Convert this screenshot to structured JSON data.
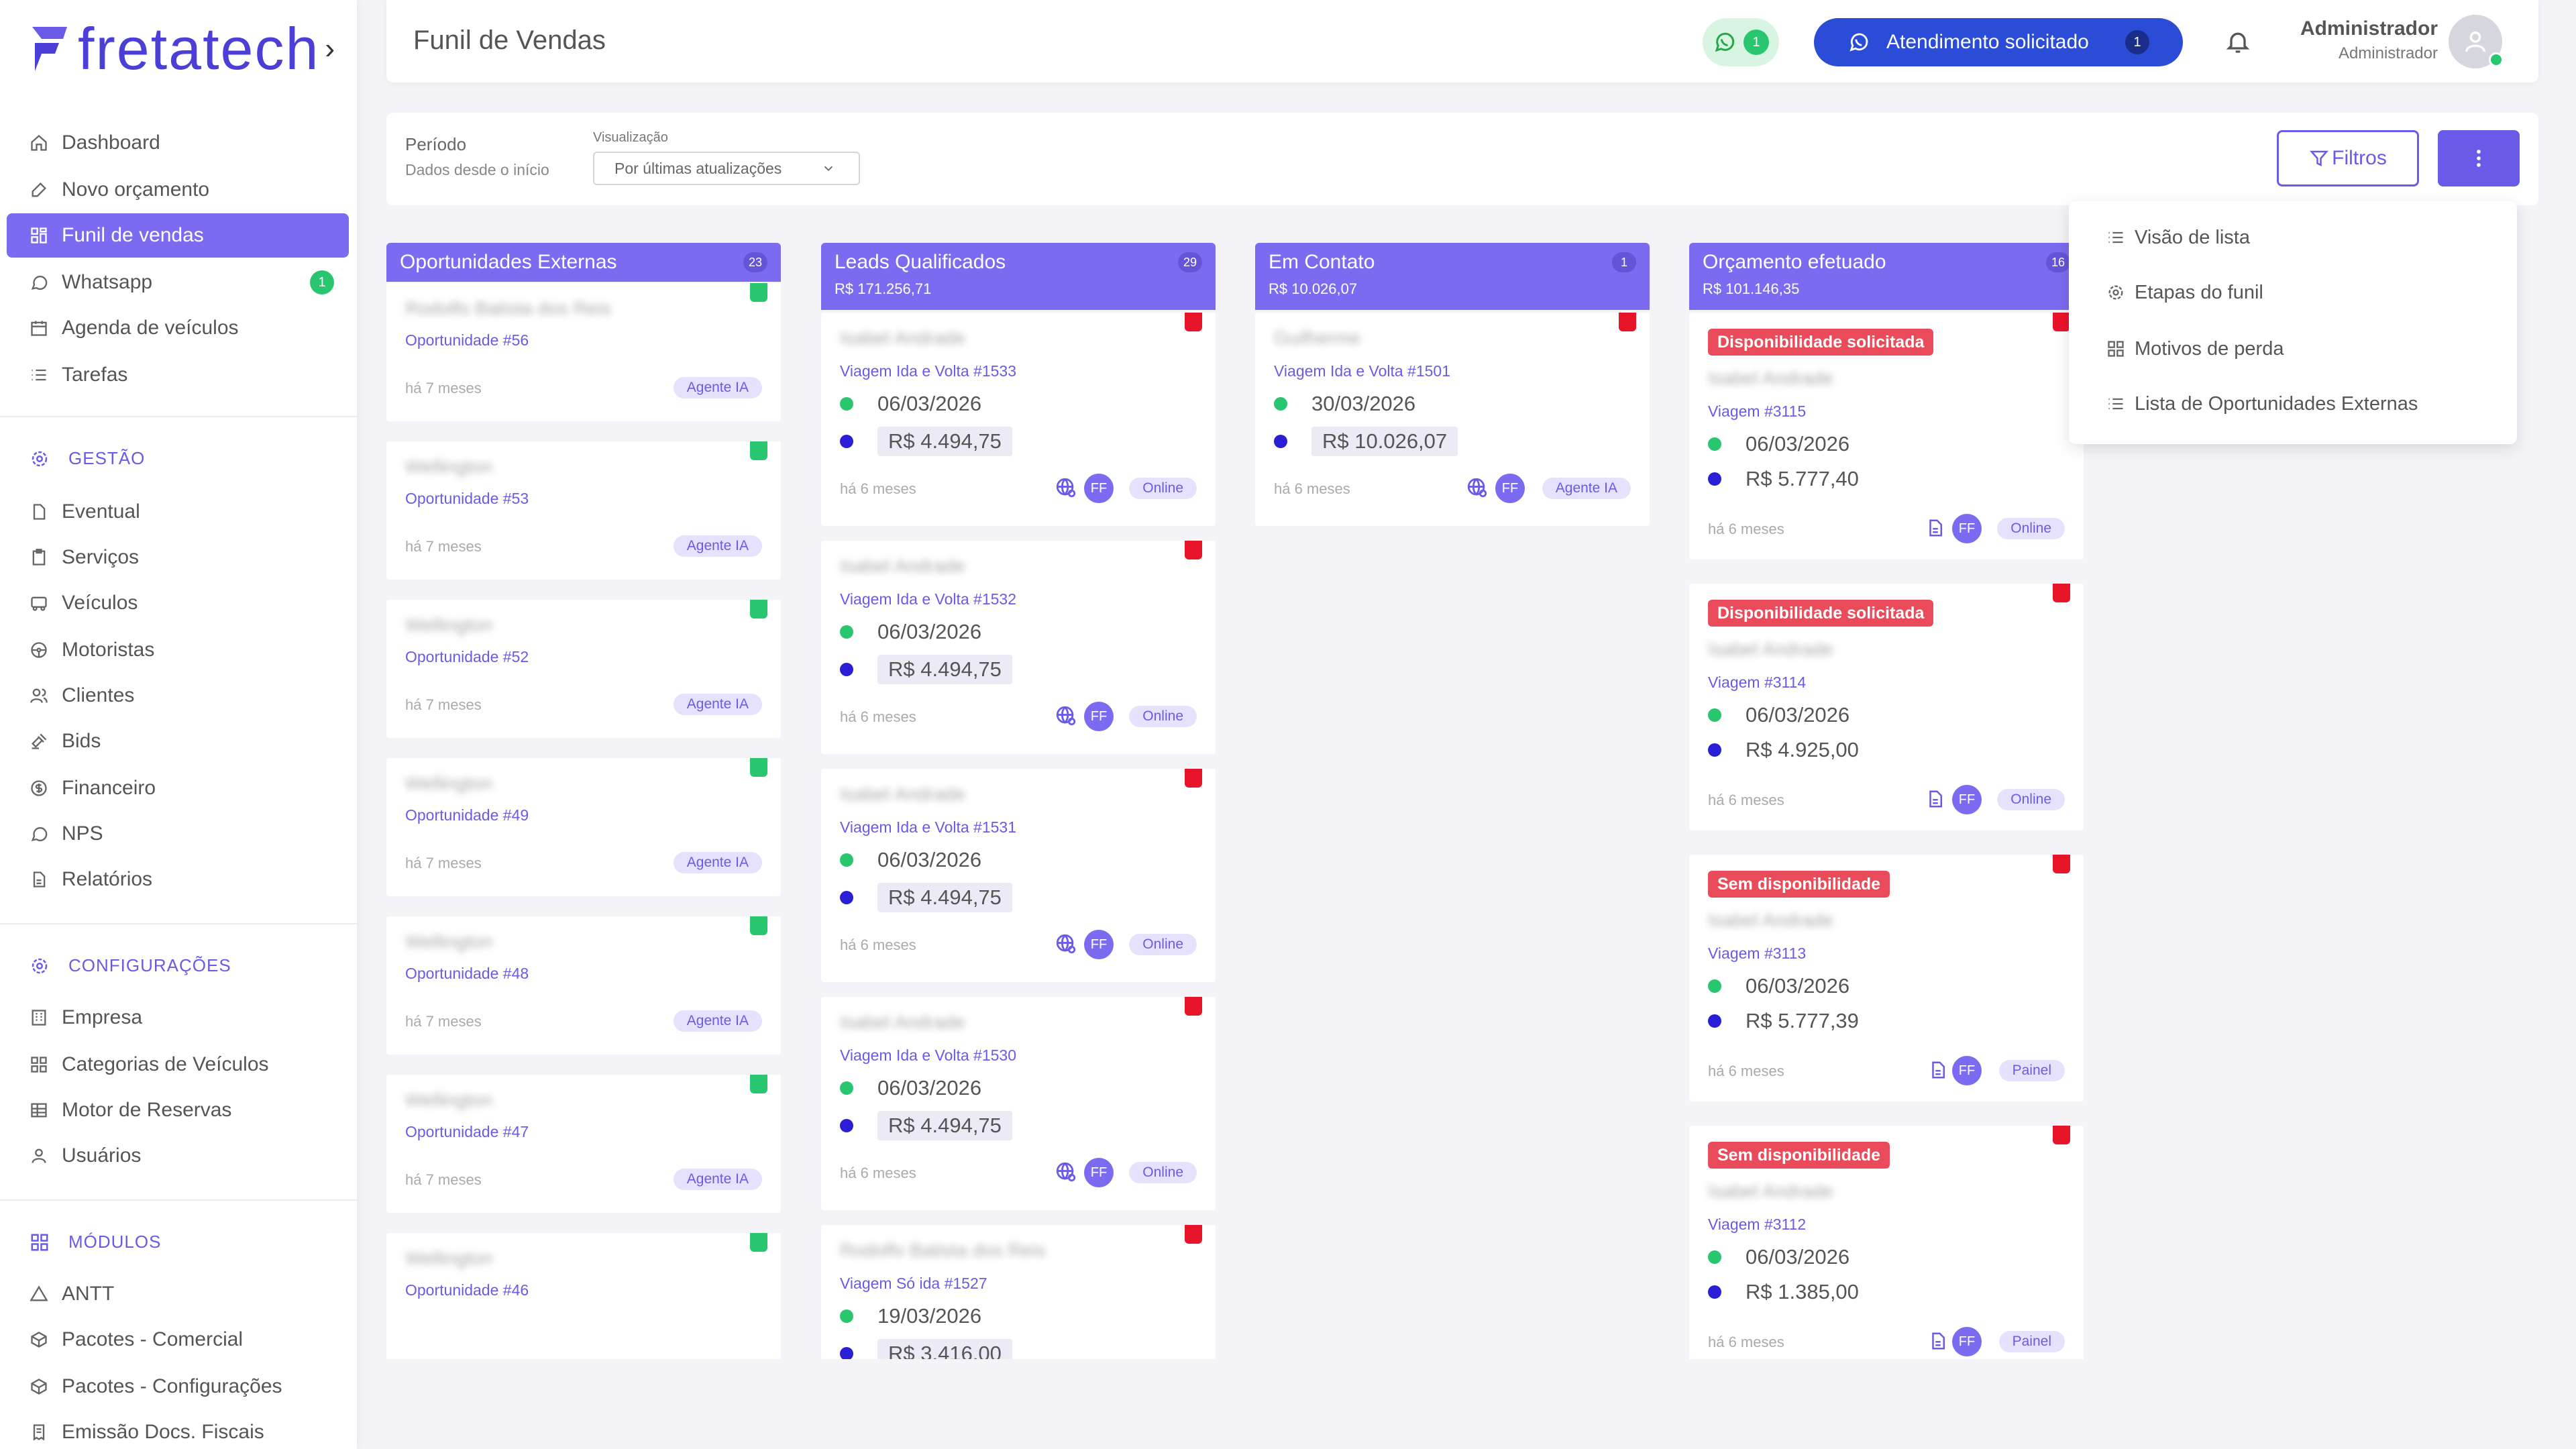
{
  "sidebar": {
    "logo_text": "fretatech",
    "logo_chevron": "›",
    "items_top": [
      {
        "label": "Dashboard",
        "icon": "home-icon"
      },
      {
        "label": "Novo orçamento",
        "icon": "edit-icon"
      },
      {
        "label": "Funil de vendas",
        "icon": "funnel-icon",
        "active": true
      },
      {
        "label": "Whatsapp",
        "icon": "chat-icon",
        "badge": "1"
      },
      {
        "label": "Agenda de veículos",
        "icon": "calendar-icon"
      },
      {
        "label": "Tarefas",
        "icon": "list-icon"
      }
    ],
    "section_gestao": "GESTÃO",
    "items_gestao": [
      {
        "label": "Eventual",
        "icon": "file-icon"
      },
      {
        "label": "Serviços",
        "icon": "clipboard-icon"
      },
      {
        "label": "Veículos",
        "icon": "bus-icon"
      },
      {
        "label": "Motoristas",
        "icon": "steering-wheel-icon"
      },
      {
        "label": "Clientes",
        "icon": "users-icon"
      },
      {
        "label": "Bids",
        "icon": "gavel-icon"
      },
      {
        "label": "Financeiro",
        "icon": "dollar-icon"
      },
      {
        "label": "NPS",
        "icon": "message-icon"
      },
      {
        "label": "Relatórios",
        "icon": "report-icon"
      }
    ],
    "section_config": "CONFIGURAÇÕES",
    "items_config": [
      {
        "label": "Empresa",
        "icon": "building-icon"
      },
      {
        "label": "Categorias de Veículos",
        "icon": "grid-icon"
      },
      {
        "label": "Motor de Reservas",
        "icon": "table-icon"
      },
      {
        "label": "Usuários",
        "icon": "user-icon"
      }
    ],
    "section_modulos": "MÓDULOS",
    "items_modulos": [
      {
        "label": "ANTT",
        "icon": "triangle-icon"
      },
      {
        "label": "Pacotes - Comercial",
        "icon": "package-icon"
      },
      {
        "label": "Pacotes - Configurações",
        "icon": "package-settings-icon"
      },
      {
        "label": "Emissão Docs. Fiscais",
        "icon": "receipt-icon"
      }
    ]
  },
  "header": {
    "title": "Funil de Vendas",
    "whatsapp_badge": "1",
    "attendance_label": "Atendimento solicitado",
    "attendance_badge": "1",
    "user_name": "Administrador",
    "user_role": "Administrador"
  },
  "filters": {
    "period_label": "Período",
    "period_value": "Dados desde o início",
    "view_label": "Visualização",
    "view_value": "Por últimas atualizações",
    "filters_button": "Filtros"
  },
  "dropdown": {
    "items": [
      "Visão de lista",
      "Etapas do funil",
      "Motivos de perda",
      "Lista de Oportunidades Externas"
    ]
  },
  "colors": {
    "accent": "#7b6bf0",
    "green": "#28c76f",
    "red": "#e8142a",
    "status_red": "#ea4b5a",
    "navy_button": "#2b4cd6"
  },
  "columns": [
    {
      "title": "Oportunidades Externas",
      "count": "23",
      "total": "",
      "cards": [
        {
          "name": "Rodolfo Batista dos Reis",
          "ref": "Oportunidade #56",
          "time": "há 7 meses",
          "source": "Agente IA",
          "flag": "green"
        },
        {
          "name": "Wellington",
          "ref": "Oportunidade #53",
          "time": "há 7 meses",
          "source": "Agente IA",
          "flag": "green"
        },
        {
          "name": "Wellington",
          "ref": "Oportunidade #52",
          "time": "há 7 meses",
          "source": "Agente IA",
          "flag": "green"
        },
        {
          "name": "Wellington",
          "ref": "Oportunidade #49",
          "time": "há 7 meses",
          "source": "Agente IA",
          "flag": "green"
        },
        {
          "name": "Wellington",
          "ref": "Oportunidade #48",
          "time": "há 7 meses",
          "source": "Agente IA",
          "flag": "green"
        },
        {
          "name": "Wellington",
          "ref": "Oportunidade #47",
          "time": "há 7 meses",
          "source": "Agente IA",
          "flag": "green"
        },
        {
          "name": "Wellington",
          "ref": "Oportunidade #46",
          "time": "",
          "source": "",
          "flag": "green"
        }
      ]
    },
    {
      "title": "Leads Qualificados",
      "count": "29",
      "total": "R$ 171.256,71",
      "cards": [
        {
          "name": "Isabel Andrade",
          "ref": "Viagem Ida e Volta #1533",
          "date": "06/03/2026",
          "price": "R$ 4.494,75",
          "time": "há 6 meses",
          "avatar": "FF",
          "source": "Online",
          "flag": "red"
        },
        {
          "name": "Isabel Andrade",
          "ref": "Viagem Ida e Volta #1532",
          "date": "06/03/2026",
          "price": "R$ 4.494,75",
          "time": "há 6 meses",
          "avatar": "FF",
          "source": "Online",
          "flag": "red"
        },
        {
          "name": "Isabel Andrade",
          "ref": "Viagem Ida e Volta #1531",
          "date": "06/03/2026",
          "price": "R$ 4.494,75",
          "time": "há 6 meses",
          "avatar": "FF",
          "source": "Online",
          "flag": "red"
        },
        {
          "name": "Isabel Andrade",
          "ref": "Viagem Ida e Volta #1530",
          "date": "06/03/2026",
          "price": "R$ 4.494,75",
          "time": "há 6 meses",
          "avatar": "FF",
          "source": "Online",
          "flag": "red"
        },
        {
          "name": "Rodolfo Batista dos Reis",
          "ref": "Viagem Só ida #1527",
          "date": "19/03/2026",
          "price": "R$ 3.416,00",
          "time": "",
          "avatar": "",
          "source": "",
          "flag": "red"
        }
      ]
    },
    {
      "title": "Em Contato",
      "count": "1",
      "total": "R$ 10.026,07",
      "cards": [
        {
          "name": "Guilherme",
          "ref": "Viagem Ida e Volta #1501",
          "date": "30/03/2026",
          "price": "R$ 10.026,07",
          "time": "há 6 meses",
          "avatar": "FF",
          "source": "Agente IA",
          "flag": "red"
        }
      ]
    },
    {
      "title": "Orçamento efetuado",
      "count": "16",
      "total": "R$ 101.146,35",
      "cards": [
        {
          "status": "Disponibilidade solicitada",
          "name": "Isabel Andrade",
          "ref": "Viagem #3115",
          "date": "06/03/2026",
          "price": "R$ 5.777,40",
          "time": "há 6 meses",
          "avatar": "FF",
          "source": "Online",
          "flag": "red"
        },
        {
          "status": "Disponibilidade solicitada",
          "name": "Isabel Andrade",
          "ref": "Viagem #3114",
          "date": "06/03/2026",
          "price": "R$ 4.925,00",
          "time": "há 6 meses",
          "avatar": "FF",
          "source": "Online",
          "flag": "red"
        },
        {
          "status": "Sem disponibilidade",
          "name": "Isabel Andrade",
          "ref": "Viagem #3113",
          "date": "06/03/2026",
          "price": "R$ 5.777,39",
          "time": "há 6 meses",
          "avatar": "FF",
          "source": "Painel",
          "flag": "red"
        },
        {
          "status": "Sem disponibilidade",
          "name": "Isabel Andrade",
          "ref": "Viagem #3112",
          "date": "06/03/2026",
          "price": "R$ 1.385,00",
          "time": "há 6 meses",
          "avatar": "FF",
          "source": "Painel",
          "flag": "red"
        }
      ]
    }
  ]
}
